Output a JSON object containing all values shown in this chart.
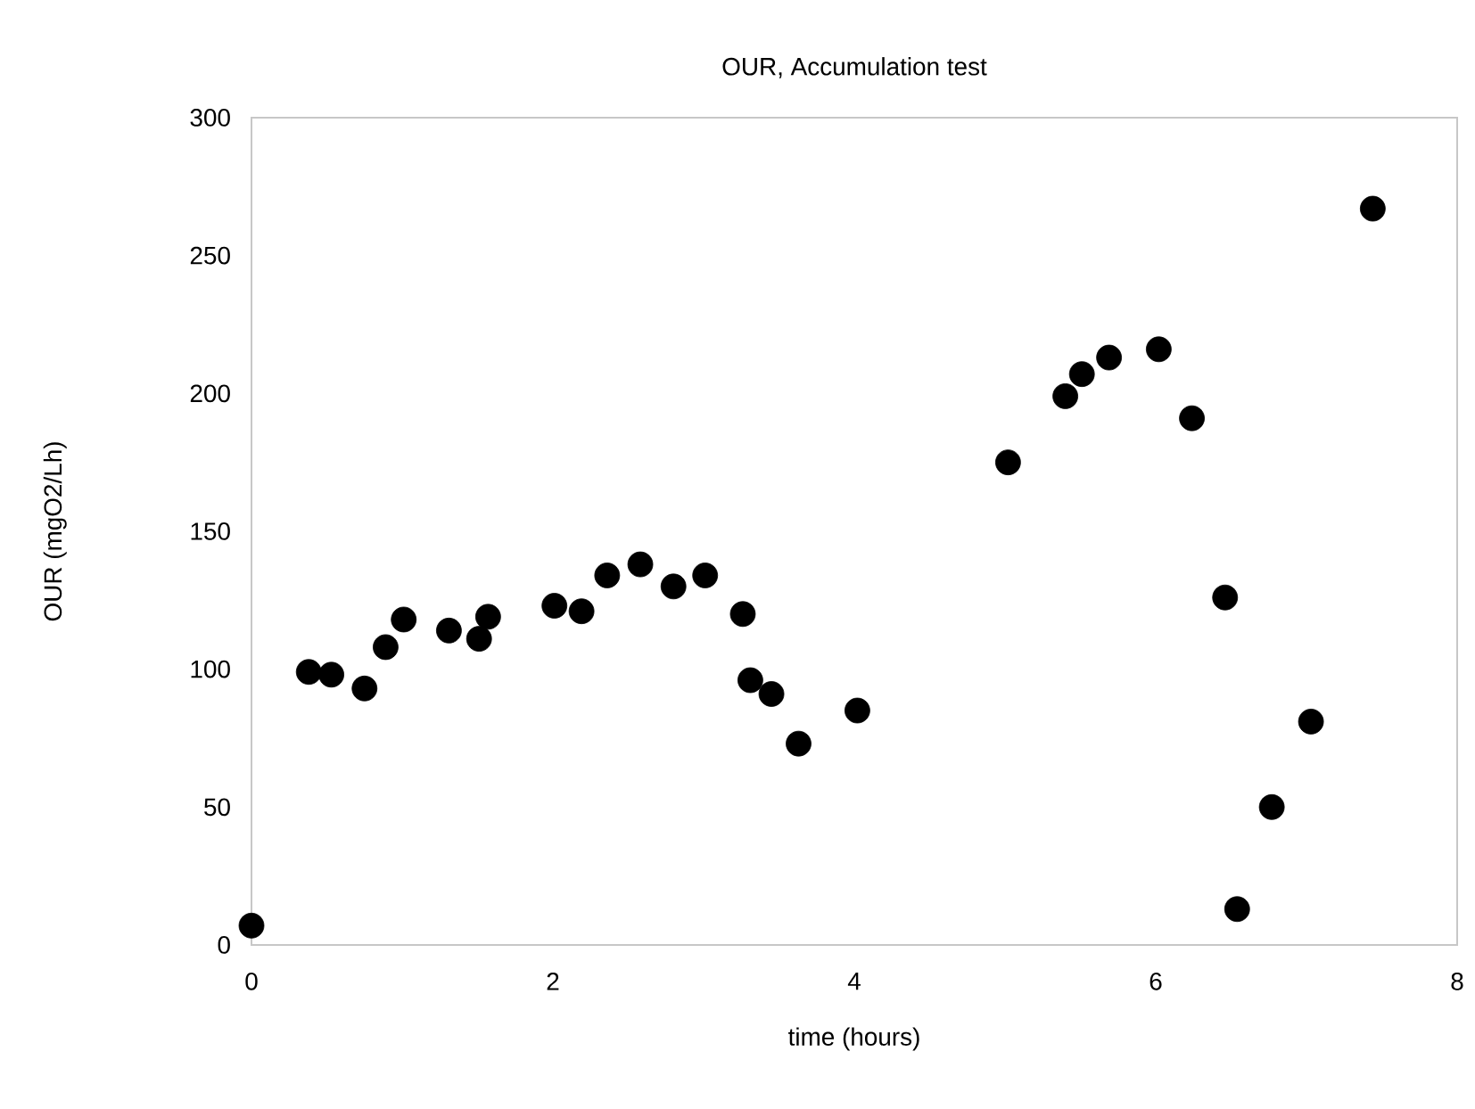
{
  "chart_data": {
    "type": "scatter",
    "title": "OUR, Accumulation test",
    "xlabel": "time (hours)",
    "ylabel": "OUR (mgO2/Lh)",
    "x": [
      0,
      0.38,
      0.53,
      0.75,
      0.89,
      1.01,
      1.31,
      1.51,
      1.57,
      2.01,
      2.19,
      2.36,
      2.58,
      2.8,
      3.01,
      3.26,
      3.31,
      3.45,
      3.63,
      4.02,
      5.02,
      5.4,
      5.51,
      5.69,
      6.02,
      6.24,
      6.46,
      6.54,
      6.77,
      7.03,
      7.44
    ],
    "values": [
      7,
      99,
      98,
      93,
      108,
      118,
      114,
      111,
      119,
      123,
      121,
      134,
      138,
      130,
      134,
      120,
      96,
      91,
      73,
      85,
      175,
      199,
      207,
      213,
      216,
      191,
      126,
      13,
      50,
      81,
      267
    ],
    "color": "#000000",
    "marker": "circle",
    "xlim": [
      0,
      8
    ],
    "xticks": [
      0,
      2,
      4,
      6,
      8
    ],
    "ylim": [
      0,
      300
    ],
    "yticks": [
      0,
      50,
      100,
      150,
      200,
      250,
      300
    ]
  }
}
